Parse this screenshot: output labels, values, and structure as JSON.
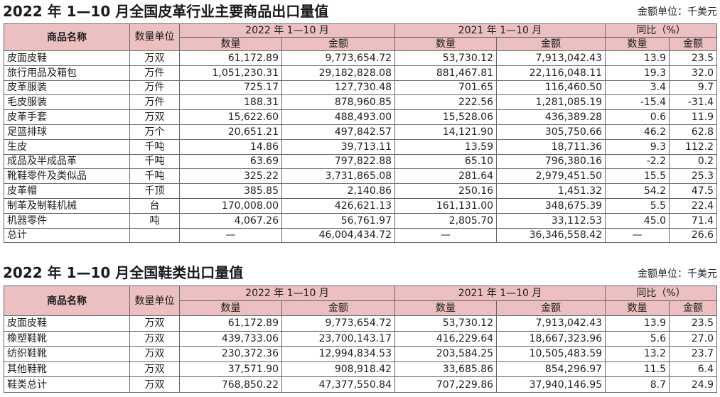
{
  "table1": {
    "title": "2022 年 1—10 月全国皮革行业主要商品出口量值",
    "unit_note": "金额单位：千美元",
    "headers": {
      "name": "商品名称",
      "unit": "数量单位",
      "period_2022": "2022 年 1—10 月",
      "period_2021": "2021 年 1—10 月",
      "yoy": "同比（%）",
      "qty": "数量",
      "amt": "金额"
    },
    "rows": [
      {
        "name": "皮面皮鞋",
        "unit": "万双",
        "q22": "61,172.89",
        "a22": "9,773,654.72",
        "q21": "53,730.12",
        "a21": "7,913,042.43",
        "yq": "13.9",
        "ya": "23.5"
      },
      {
        "name": "旅行用品及箱包",
        "unit": "万件",
        "q22": "1,051,230.31",
        "a22": "29,182,828.08",
        "q21": "881,467.81",
        "a21": "22,116,048.11",
        "yq": "19.3",
        "ya": "32.0"
      },
      {
        "name": "皮革服装",
        "unit": "万件",
        "q22": "725.17",
        "a22": "127,730.48",
        "q21": "701.65",
        "a21": "116,460.50",
        "yq": "3.4",
        "ya": "9.7"
      },
      {
        "name": "毛皮服装",
        "unit": "万件",
        "q22": "188.31",
        "a22": "878,960.85",
        "q21": "222.56",
        "a21": "1,281,085.19",
        "yq": "-15.4",
        "ya": "-31.4"
      },
      {
        "name": "皮革手套",
        "unit": "万双",
        "q22": "15,622.60",
        "a22": "488,493.00",
        "q21": "15,528.06",
        "a21": "436,389.28",
        "yq": "0.6",
        "ya": "11.9"
      },
      {
        "name": "足篮排球",
        "unit": "万个",
        "q22": "20,651.21",
        "a22": "497,842.57",
        "q21": "14,121.90",
        "a21": "305,750.66",
        "yq": "46.2",
        "ya": "62.8"
      },
      {
        "name": "生皮",
        "unit": "千吨",
        "q22": "14.86",
        "a22": "39,713.11",
        "q21": "13.59",
        "a21": "18,711.36",
        "yq": "9.3",
        "ya": "112.2"
      },
      {
        "name": "成品及半成品革",
        "unit": "千吨",
        "q22": "63.69",
        "a22": "797,822.88",
        "q21": "65.10",
        "a21": "796,380.16",
        "yq": "-2.2",
        "ya": "0.2"
      },
      {
        "name": "靴鞋零件及类似品",
        "unit": "千吨",
        "q22": "325.22",
        "a22": "3,731,865.08",
        "q21": "281.64",
        "a21": "2,979,451.50",
        "yq": "15.5",
        "ya": "25.3"
      },
      {
        "name": "皮革帽",
        "unit": "千顶",
        "q22": "385.85",
        "a22": "2,140.86",
        "q21": "250.16",
        "a21": "1,451.32",
        "yq": "54.2",
        "ya": "47.5"
      },
      {
        "name": "制革及制鞋机械",
        "unit": "台",
        "q22": "170,008.00",
        "a22": "426,621.13",
        "q21": "161,131.00",
        "a21": "348,675.39",
        "yq": "5.5",
        "ya": "22.4"
      },
      {
        "name": "机器零件",
        "unit": "吨",
        "q22": "4,067.26",
        "a22": "56,761.97",
        "q21": "2,805.70",
        "a21": "33,112.53",
        "yq": "45.0",
        "ya": "71.4"
      },
      {
        "name": "总计",
        "unit": "",
        "q22": "—",
        "a22": "46,004,434.72",
        "q21": "—",
        "a21": "36,346,558.42",
        "yq": "—",
        "ya": "26.6"
      }
    ]
  },
  "table2": {
    "title": "2022 年 1—10 月全国鞋类出口量值",
    "unit_note": "金额单位：千美元",
    "headers": {
      "name": "商品名称",
      "unit": "数量单位",
      "period_2022": "2022 年 1—10 月",
      "period_2021": "2021 年 1—10 月",
      "yoy": "同比（%）",
      "qty": "数量",
      "amt": "金额"
    },
    "rows": [
      {
        "name": "皮面皮鞋",
        "unit": "万双",
        "q22": "61,172.89",
        "a22": "9,773,654.72",
        "q21": "53,730.12",
        "a21": "7,913,042.43",
        "yq": "13.9",
        "ya": "23.5"
      },
      {
        "name": "橡塑鞋靴",
        "unit": "万双",
        "q22": "439,733.06",
        "a22": "23,700,143.17",
        "q21": "416,229.64",
        "a21": "18,667,323.96",
        "yq": "5.6",
        "ya": "27.0"
      },
      {
        "name": "纺织鞋靴",
        "unit": "万双",
        "q22": "230,372.36",
        "a22": "12,994,834.53",
        "q21": "203,584.25",
        "a21": "10,505,483.59",
        "yq": "13.2",
        "ya": "23.7"
      },
      {
        "name": "其他鞋靴",
        "unit": "万双",
        "q22": "37,571.90",
        "a22": "908,918.42",
        "q21": "33,685.86",
        "a21": "854,296.97",
        "yq": "11.5",
        "ya": "6.4"
      },
      {
        "name": "鞋类总计",
        "unit": "万双",
        "q22": "768,850.22",
        "a22": "47,377,550.84",
        "q21": "707,229.86",
        "a21": "37,940,146.95",
        "yq": "8.7",
        "ya": "24.9"
      }
    ]
  }
}
